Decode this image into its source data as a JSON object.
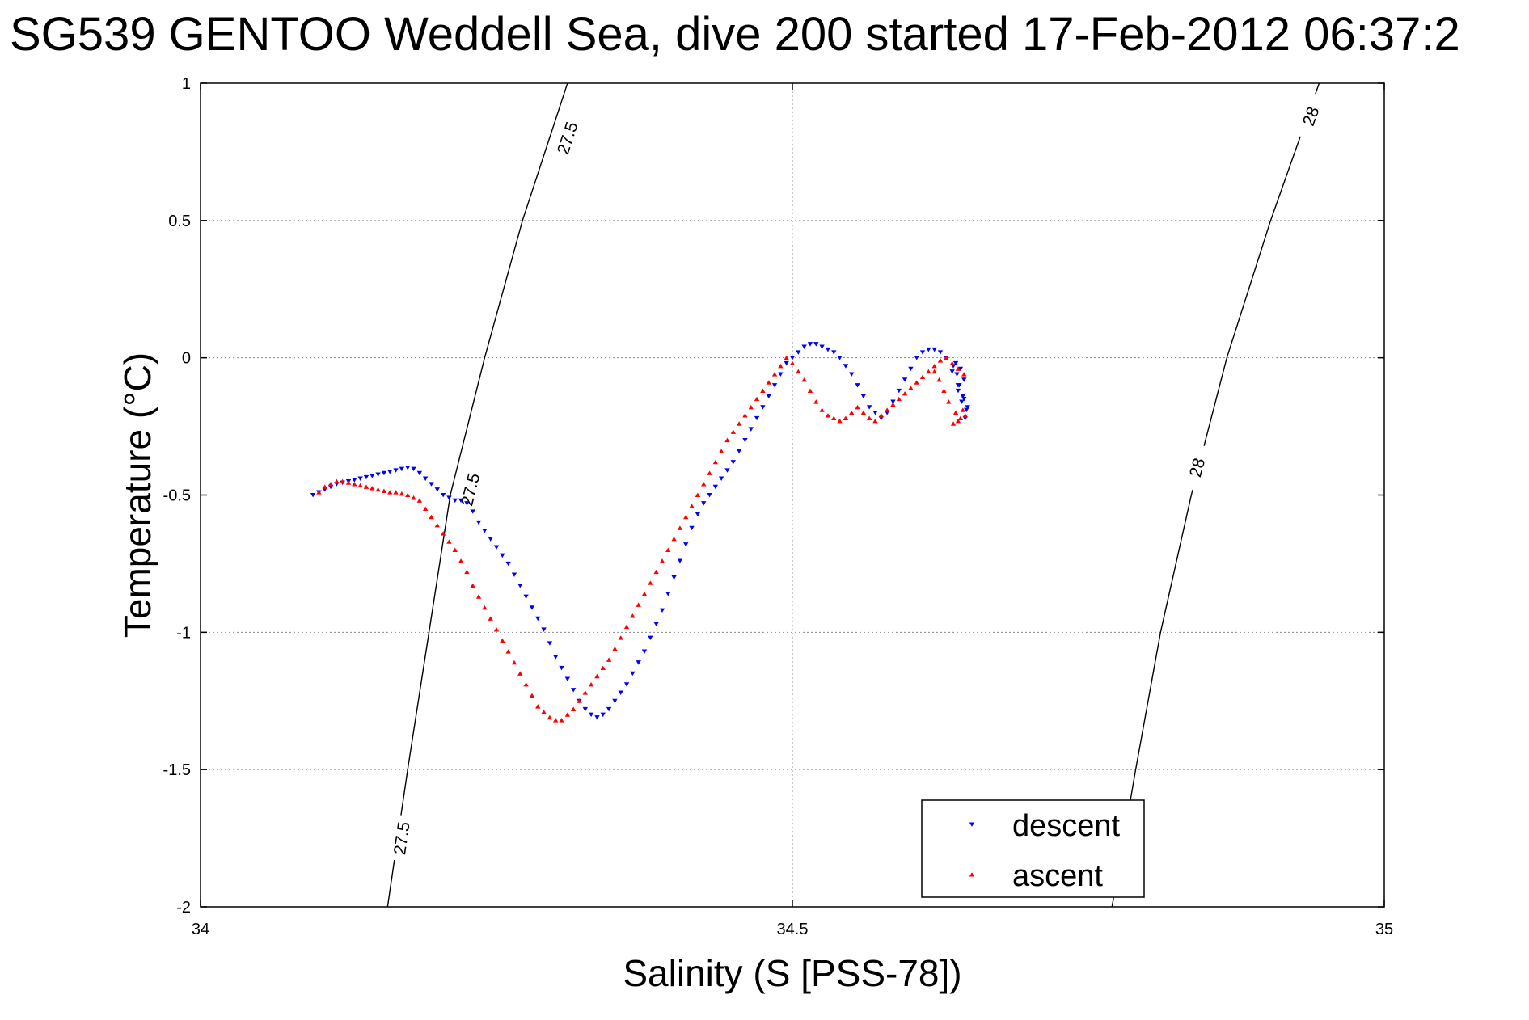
{
  "chart_data": {
    "type": "scatter",
    "title": "SG539 GENTOO Weddell Sea, dive 200 started 17-Feb-2012 06:37:2",
    "xlabel": "Salinity (S [PSS-78])",
    "ylabel": "Temperature (°C)",
    "xlim": [
      34,
      35
    ],
    "ylim": [
      -2,
      1
    ],
    "x_ticks": [
      34,
      34.5,
      35
    ],
    "x_tick_labels": [
      "34",
      "34.5",
      "35"
    ],
    "y_ticks": [
      -2,
      -1.5,
      -1,
      -0.5,
      0,
      0.5,
      1
    ],
    "y_tick_labels": [
      "-2",
      "-1.5",
      "-1",
      "-0.5",
      "0",
      "0.5",
      "1"
    ],
    "grid": true,
    "legend_position": "bottom-right",
    "colors": {
      "descent": "#0000ff",
      "ascent": "#ff0000",
      "contour": "#000000"
    },
    "contours": [
      {
        "label": "27.5",
        "points": [
          [
            34.158,
            -2.0
          ],
          [
            34.175,
            -1.5
          ],
          [
            34.193,
            -1.0
          ],
          [
            34.211,
            -0.5
          ],
          [
            34.24,
            0.0
          ],
          [
            34.272,
            0.5
          ],
          [
            34.31,
            1.0
          ]
        ],
        "label_positions": [
          [
            34.17,
            -1.75
          ],
          [
            34.228,
            -0.48
          ],
          [
            34.31,
            0.8
          ]
        ]
      },
      {
        "label": "28",
        "points": [
          [
            34.77,
            -2.0
          ],
          [
            34.79,
            -1.5
          ],
          [
            34.811,
            -1.0
          ],
          [
            34.837,
            -0.5
          ],
          [
            34.867,
            0.0
          ],
          [
            34.904,
            0.5
          ],
          [
            34.945,
            1.0
          ]
        ],
        "label_positions": [
          [
            34.78,
            -1.7
          ],
          [
            34.842,
            -0.4
          ],
          [
            34.938,
            0.88
          ]
        ]
      }
    ],
    "series": [
      {
        "name": "descent",
        "marker": "triangle-down",
        "color": "#0000ff",
        "x": [
          34.095,
          34.1,
          34.105,
          34.11,
          34.115,
          34.12,
          34.125,
          34.13,
          34.135,
          34.14,
          34.145,
          34.15,
          34.155,
          34.16,
          34.165,
          34.17,
          34.175,
          34.18,
          34.185,
          34.19,
          34.195,
          34.2,
          34.205,
          34.21,
          34.215,
          34.22,
          34.225,
          34.23,
          34.235,
          34.24,
          34.245,
          34.25,
          34.255,
          34.26,
          34.265,
          34.27,
          34.275,
          34.28,
          34.285,
          34.29,
          34.295,
          34.3,
          34.305,
          34.31,
          34.315,
          34.32,
          34.325,
          34.33,
          34.335,
          34.34,
          34.345,
          34.35,
          34.355,
          34.36,
          34.365,
          34.37,
          34.375,
          34.38,
          34.385,
          34.39,
          34.395,
          34.4,
          34.405,
          34.41,
          34.415,
          34.42,
          34.425,
          34.43,
          34.435,
          34.44,
          34.445,
          34.45,
          34.455,
          34.46,
          34.465,
          34.47,
          34.475,
          34.48,
          34.485,
          34.49,
          34.495,
          34.5,
          34.505,
          34.51,
          34.515,
          34.52,
          34.525,
          34.53,
          34.535,
          34.54,
          34.545,
          34.55,
          34.555,
          34.56,
          34.565,
          34.57,
          34.575,
          34.58,
          34.585,
          34.59,
          34.595,
          34.6,
          34.605,
          34.61,
          34.615,
          34.62,
          34.625,
          34.63,
          34.635,
          34.64,
          34.645,
          34.648,
          34.646,
          34.643,
          34.64,
          34.645,
          34.642,
          34.638,
          34.647,
          34.644,
          34.641,
          34.639,
          34.636
        ],
        "y": [
          -0.5,
          -0.49,
          -0.48,
          -0.47,
          -0.46,
          -0.455,
          -0.45,
          -0.445,
          -0.44,
          -0.435,
          -0.43,
          -0.425,
          -0.42,
          -0.415,
          -0.41,
          -0.405,
          -0.4,
          -0.405,
          -0.42,
          -0.44,
          -0.46,
          -0.48,
          -0.5,
          -0.51,
          -0.52,
          -0.52,
          -0.53,
          -0.56,
          -0.6,
          -0.63,
          -0.66,
          -0.69,
          -0.72,
          -0.75,
          -0.79,
          -0.83,
          -0.87,
          -0.91,
          -0.95,
          -0.99,
          -1.04,
          -1.09,
          -1.13,
          -1.17,
          -1.21,
          -1.25,
          -1.28,
          -1.3,
          -1.31,
          -1.3,
          -1.28,
          -1.25,
          -1.22,
          -1.19,
          -1.15,
          -1.11,
          -1.07,
          -1.02,
          -0.97,
          -0.92,
          -0.86,
          -0.8,
          -0.74,
          -0.68,
          -0.62,
          -0.57,
          -0.53,
          -0.5,
          -0.47,
          -0.44,
          -0.41,
          -0.38,
          -0.34,
          -0.3,
          -0.26,
          -0.22,
          -0.18,
          -0.14,
          -0.1,
          -0.06,
          -0.02,
          0.0,
          0.02,
          0.04,
          0.05,
          0.05,
          0.04,
          0.03,
          0.02,
          0.0,
          -0.03,
          -0.06,
          -0.1,
          -0.14,
          -0.18,
          -0.2,
          -0.22,
          -0.2,
          -0.16,
          -0.12,
          -0.08,
          -0.04,
          0.0,
          0.02,
          0.03,
          0.03,
          0.02,
          0.0,
          -0.05,
          -0.1,
          -0.15,
          -0.18,
          -0.22,
          -0.16,
          -0.12,
          -0.08,
          -0.04,
          -0.02,
          -0.19,
          -0.14,
          -0.1,
          -0.06,
          -0.03
        ],
        "count_note": ""
      },
      {
        "name": "ascent",
        "marker": "triangle-up",
        "color": "#ff0000",
        "x": [
          34.1,
          34.105,
          34.11,
          34.115,
          34.12,
          34.125,
          34.13,
          34.135,
          34.14,
          34.145,
          34.15,
          34.155,
          34.16,
          34.165,
          34.17,
          34.175,
          34.18,
          34.185,
          34.19,
          34.195,
          34.2,
          34.205,
          34.21,
          34.215,
          34.22,
          34.225,
          34.23,
          34.235,
          34.24,
          34.245,
          34.25,
          34.255,
          34.26,
          34.265,
          34.27,
          34.275,
          34.28,
          34.285,
          34.29,
          34.295,
          34.3,
          34.305,
          34.31,
          34.315,
          34.32,
          34.325,
          34.33,
          34.335,
          34.34,
          34.345,
          34.35,
          34.355,
          34.36,
          34.365,
          34.37,
          34.375,
          34.38,
          34.385,
          34.39,
          34.395,
          34.4,
          34.405,
          34.41,
          34.415,
          34.42,
          34.425,
          34.43,
          34.435,
          34.44,
          34.445,
          34.45,
          34.455,
          34.46,
          34.465,
          34.47,
          34.475,
          34.48,
          34.485,
          34.49,
          34.495,
          34.5,
          34.505,
          34.51,
          34.515,
          34.52,
          34.525,
          34.53,
          34.535,
          34.54,
          34.545,
          34.55,
          34.555,
          34.56,
          34.565,
          34.57,
          34.575,
          34.58,
          34.585,
          34.59,
          34.595,
          34.6,
          34.605,
          34.61,
          34.615,
          34.62,
          34.625,
          34.63,
          34.635,
          34.64,
          34.645,
          34.638,
          34.642,
          34.646,
          34.636,
          34.64,
          34.644,
          34.632,
          34.628,
          34.624,
          34.62
        ],
        "y": [
          -0.49,
          -0.47,
          -0.46,
          -0.45,
          -0.45,
          -0.455,
          -0.46,
          -0.465,
          -0.47,
          -0.475,
          -0.48,
          -0.485,
          -0.49,
          -0.49,
          -0.495,
          -0.5,
          -0.51,
          -0.52,
          -0.55,
          -0.58,
          -0.61,
          -0.64,
          -0.67,
          -0.7,
          -0.74,
          -0.78,
          -0.83,
          -0.87,
          -0.91,
          -0.95,
          -0.99,
          -1.03,
          -1.07,
          -1.11,
          -1.15,
          -1.19,
          -1.23,
          -1.27,
          -1.29,
          -1.31,
          -1.32,
          -1.32,
          -1.3,
          -1.28,
          -1.25,
          -1.22,
          -1.19,
          -1.16,
          -1.13,
          -1.1,
          -1.06,
          -1.02,
          -0.98,
          -0.94,
          -0.9,
          -0.86,
          -0.82,
          -0.78,
          -0.74,
          -0.7,
          -0.66,
          -0.62,
          -0.58,
          -0.54,
          -0.5,
          -0.46,
          -0.42,
          -0.38,
          -0.34,
          -0.3,
          -0.27,
          -0.24,
          -0.21,
          -0.18,
          -0.15,
          -0.12,
          -0.09,
          -0.06,
          -0.03,
          0.0,
          -0.02,
          -0.05,
          -0.08,
          -0.12,
          -0.16,
          -0.19,
          -0.21,
          -0.22,
          -0.23,
          -0.22,
          -0.2,
          -0.18,
          -0.2,
          -0.22,
          -0.23,
          -0.21,
          -0.19,
          -0.17,
          -0.15,
          -0.13,
          -0.11,
          -0.09,
          -0.07,
          -0.05,
          -0.03,
          -0.01,
          0.0,
          -0.02,
          -0.04,
          -0.06,
          -0.2,
          -0.22,
          -0.21,
          -0.24,
          -0.23,
          -0.19,
          -0.16,
          -0.12,
          -0.08,
          -0.05
        ]
      }
    ],
    "legend": {
      "entries": [
        {
          "label": "descent",
          "color": "#0000ff",
          "marker": "triangle-down"
        },
        {
          "label": "ascent",
          "color": "#ff0000",
          "marker": "triangle-up"
        }
      ]
    }
  }
}
